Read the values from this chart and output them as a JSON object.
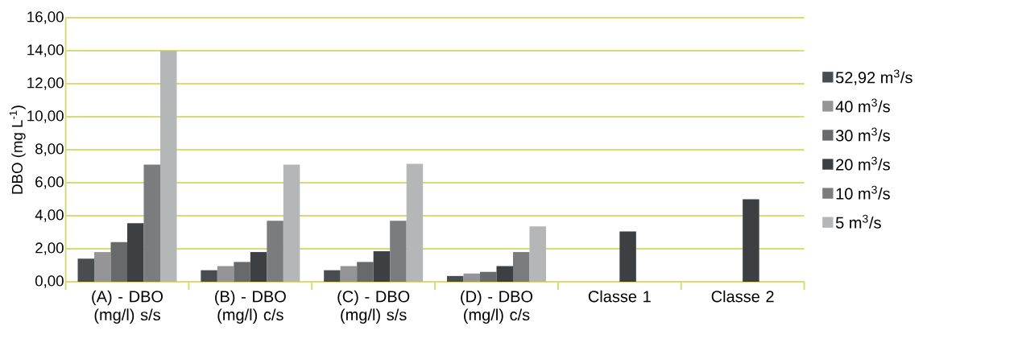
{
  "chart_data": {
    "type": "bar",
    "ylabel": "DBO (mg L$^{-1}$)",
    "categories": [
      "(A) - DBO (mg/l) s/s",
      "(B) - DBO (mg/l) c/s",
      "(C) - DBO (mg/l) s/s",
      "(D) - DBO (mg/l) c/s",
      "Classe 1",
      "Classe 2"
    ],
    "series": [
      {
        "name": "52,92 m$^{3}$/s",
        "color": "#4a4d4f",
        "values": [
          1.4,
          0.7,
          0.7,
          0.35,
          null,
          null
        ]
      },
      {
        "name": "40 m$^{3}$/s",
        "color": "#959597",
        "values": [
          1.8,
          0.95,
          0.95,
          0.5,
          null,
          null
        ]
      },
      {
        "name": "30 m$^{3}$/s",
        "color": "#67696a",
        "values": [
          2.4,
          1.2,
          1.2,
          0.6,
          null,
          null
        ]
      },
      {
        "name": "20 m$^{3}$/s",
        "color": "#3d4042",
        "values": [
          3.55,
          1.8,
          1.85,
          0.95,
          3.05,
          5.0
        ]
      },
      {
        "name": "10 m$^{3}$/s",
        "color": "#7a7c7d",
        "values": [
          7.1,
          3.7,
          3.7,
          1.8,
          null,
          null
        ]
      },
      {
        "name": "5 m$^{3}$/s",
        "color": "#b5b6b7",
        "values": [
          14.0,
          7.1,
          7.15,
          3.35,
          null,
          null
        ]
      }
    ],
    "ylim": [
      0,
      16
    ],
    "yticks": [
      {
        "value": 0,
        "label": "0,00"
      },
      {
        "value": 2,
        "label": "2,00"
      },
      {
        "value": 4,
        "label": "4,00"
      },
      {
        "value": 6,
        "label": "6,00"
      },
      {
        "value": 8,
        "label": "8,00"
      },
      {
        "value": 10,
        "label": "10,00"
      },
      {
        "value": 12,
        "label": "12,00"
      },
      {
        "value": 14,
        "label": "14,00"
      },
      {
        "value": 16,
        "label": "16,00"
      }
    ],
    "grid": "y",
    "legend": "right"
  }
}
